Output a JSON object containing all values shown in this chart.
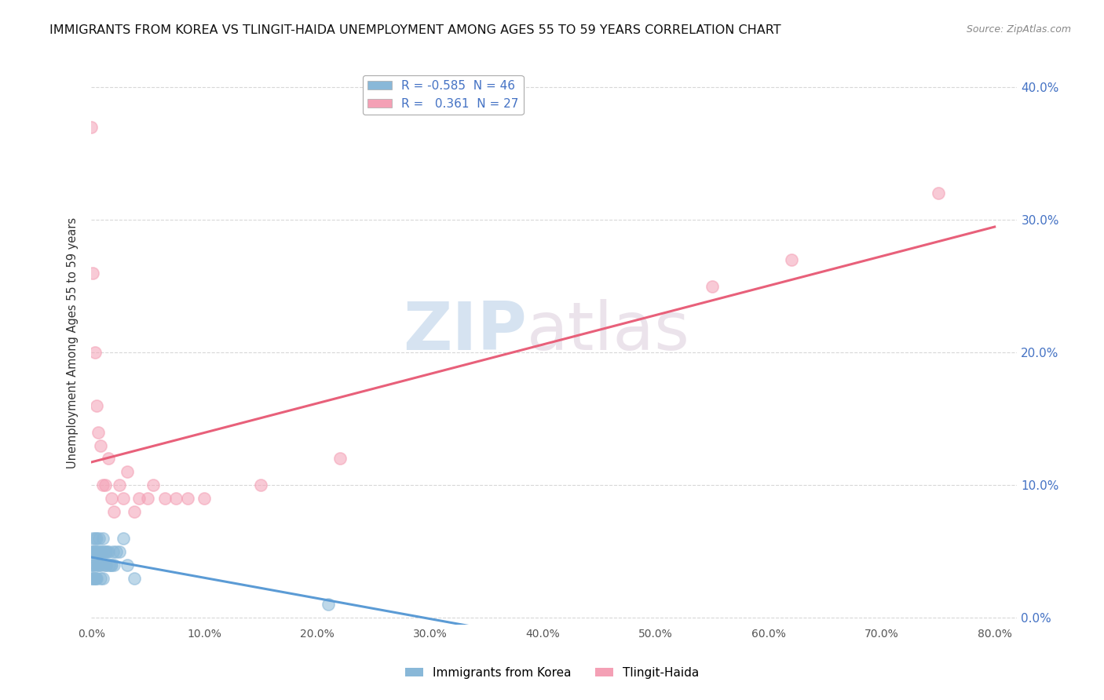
{
  "title": "IMMIGRANTS FROM KOREA VS TLINGIT-HAIDA UNEMPLOYMENT AMONG AGES 55 TO 59 YEARS CORRELATION CHART",
  "source": "Source: ZipAtlas.com",
  "ylabel": "Unemployment Among Ages 55 to 59 years",
  "xlim": [
    0.0,
    0.82
  ],
  "ylim": [
    -0.005,
    0.42
  ],
  "xticks": [
    0.0,
    0.1,
    0.2,
    0.3,
    0.4,
    0.5,
    0.6,
    0.7,
    0.8
  ],
  "yticks": [
    0.0,
    0.1,
    0.2,
    0.3,
    0.4
  ],
  "xtick_labels": [
    "0.0%",
    "10.0%",
    "20.0%",
    "30.0%",
    "40.0%",
    "50.0%",
    "60.0%",
    "70.0%",
    "80.0%"
  ],
  "ytick_labels": [
    "0.0%",
    "10.0%",
    "20.0%",
    "30.0%",
    "40.0%"
  ],
  "korea_color": "#89b8d8",
  "tlingit_color": "#f4a0b5",
  "korea_trend_color": "#5b9bd5",
  "tlingit_trend_color": "#e8607a",
  "watermark_top": "ZIP",
  "watermark_bottom": "atlas",
  "background_color": "#ffffff",
  "grid_color": "#d8d8d8",
  "title_fontsize": 11.5,
  "tick_fontsize": 10,
  "right_tick_color": "#4472c4",
  "korea_x": [
    0.0,
    0.0,
    0.0,
    0.001,
    0.001,
    0.001,
    0.001,
    0.002,
    0.002,
    0.002,
    0.003,
    0.003,
    0.003,
    0.004,
    0.004,
    0.004,
    0.005,
    0.005,
    0.005,
    0.006,
    0.006,
    0.007,
    0.007,
    0.008,
    0.008,
    0.009,
    0.009,
    0.01,
    0.01,
    0.011,
    0.012,
    0.012,
    0.013,
    0.014,
    0.015,
    0.016,
    0.017,
    0.018,
    0.019,
    0.02,
    0.022,
    0.025,
    0.028,
    0.032,
    0.038,
    0.21
  ],
  "korea_y": [
    0.05,
    0.04,
    0.03,
    0.06,
    0.05,
    0.04,
    0.03,
    0.05,
    0.04,
    0.03,
    0.06,
    0.05,
    0.03,
    0.05,
    0.04,
    0.03,
    0.06,
    0.05,
    0.03,
    0.05,
    0.04,
    0.06,
    0.04,
    0.05,
    0.03,
    0.05,
    0.04,
    0.06,
    0.03,
    0.05,
    0.05,
    0.04,
    0.04,
    0.05,
    0.05,
    0.04,
    0.04,
    0.04,
    0.05,
    0.04,
    0.05,
    0.05,
    0.06,
    0.04,
    0.03,
    0.01
  ],
  "tlingit_x": [
    0.0,
    0.001,
    0.003,
    0.005,
    0.006,
    0.008,
    0.01,
    0.012,
    0.015,
    0.018,
    0.02,
    0.025,
    0.028,
    0.032,
    0.038,
    0.042,
    0.05,
    0.055,
    0.065,
    0.075,
    0.085,
    0.1,
    0.15,
    0.22,
    0.55,
    0.62,
    0.75
  ],
  "tlingit_y": [
    0.37,
    0.26,
    0.2,
    0.16,
    0.14,
    0.13,
    0.1,
    0.1,
    0.12,
    0.09,
    0.08,
    0.1,
    0.09,
    0.11,
    0.08,
    0.09,
    0.09,
    0.1,
    0.09,
    0.09,
    0.09,
    0.09,
    0.1,
    0.12,
    0.25,
    0.27,
    0.32
  ]
}
